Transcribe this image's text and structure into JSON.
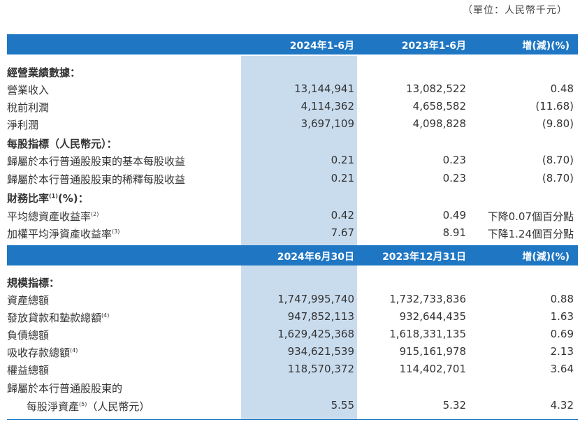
{
  "unit": "（單位：人民幣千元）",
  "header1": {
    "col1": "2024年1-6月",
    "col2": "2023年1-6月",
    "col3": "增(減)(%)"
  },
  "header2": {
    "col1": "2024年6月30日",
    "col2": "2023年12月31日",
    "col3": "增(減)(%)"
  },
  "section1": {
    "title": "經營業績數據：",
    "rows": [
      {
        "label": "營業收入",
        "v1": "13,144,941",
        "v2": "13,082,522",
        "v3": "0.48"
      },
      {
        "label": "稅前利潤",
        "v1": "4,114,362",
        "v2": "4,658,582",
        "v3": "(11.68)"
      },
      {
        "label": "淨利潤",
        "v1": "3,697,109",
        "v2": "4,098,828",
        "v3": "(9.80)"
      }
    ]
  },
  "section2": {
    "title": "每股指標（人民幣元）：",
    "rows": [
      {
        "label": "歸屬於本行普通股股東的基本每股收益",
        "v1": "0.21",
        "v2": "0.23",
        "v3": "(8.70)"
      },
      {
        "label": "歸屬於本行普通股股東的稀釋每股收益",
        "v1": "0.21",
        "v2": "0.23",
        "v3": "(8.70)"
      }
    ]
  },
  "section3": {
    "title_a": "財務比率",
    "title_sup": "(1)",
    "title_b": "(%)：",
    "rows": [
      {
        "label": "平均總資產收益率",
        "sup": "(2)",
        "v1": "0.42",
        "v2": "0.49",
        "v3": "下降0.07個百分點"
      },
      {
        "label": "加權平均淨資產收益率",
        "sup": "(3)",
        "v1": "7.67",
        "v2": "8.91",
        "v3": "下降1.24個百分點"
      }
    ]
  },
  "section4": {
    "title": "規模指標：",
    "rows": [
      {
        "label": "資產總額",
        "sup": "",
        "v1": "1,747,995,740",
        "v2": "1,732,733,836",
        "v3": "0.88"
      },
      {
        "label": "發放貸款和墊款總額",
        "sup": "(4)",
        "v1": "947,852,113",
        "v2": "932,644,435",
        "v3": "1.63"
      },
      {
        "label": "負債總額",
        "sup": "",
        "v1": "1,629,425,368",
        "v2": "1,618,331,135",
        "v3": "0.69"
      },
      {
        "label": "吸收存款總額",
        "sup": "(4)",
        "v1": "934,621,539",
        "v2": "915,161,978",
        "v3": "2.13"
      },
      {
        "label": "權益總額",
        "sup": "",
        "v1": "118,570,372",
        "v2": "114,402,701",
        "v3": "3.64"
      }
    ],
    "last_label_line1": "歸屬於本行普通股股東的",
    "last_label_line2a": "每股淨資產",
    "last_sup": "(5)",
    "last_label_line2b": "（人民幣元）",
    "last_v1": "5.55",
    "last_v2": "5.32",
    "last_v3": "4.32"
  }
}
